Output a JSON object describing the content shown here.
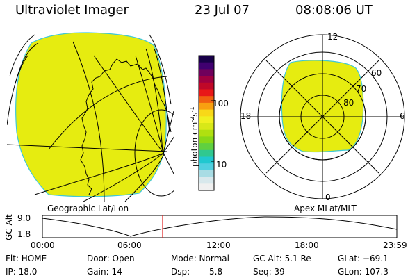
{
  "header": {
    "title": "Ultraviolet Imager",
    "date": "23 Jul 07",
    "time": "08:08:06 UT"
  },
  "left_panel": {
    "caption": "Geographic Lat/Lon",
    "fill_color": "#e6ec10"
  },
  "colorbar": {
    "axis_label": "photon cm",
    "exp1": "-2",
    "mid": "s",
    "exp2": "-1",
    "tick_100": "100",
    "tick_10": "10",
    "colors": [
      "#f0f0f0",
      "#d8e8ec",
      "#a8dce4",
      "#50d0e0",
      "#20c8d0",
      "#30c890",
      "#60d040",
      "#88d818",
      "#b0e010",
      "#d8e818",
      "#f0f020",
      "#f8d818",
      "#f8a010",
      "#f06010",
      "#e81818",
      "#c00828",
      "#a00040",
      "#70005c",
      "#400070",
      "#180048"
    ]
  },
  "right_panel": {
    "caption": "Apex MLat/MLT",
    "mlt_labels": {
      "top": "12",
      "left": "18",
      "right": "6",
      "bottom": "0"
    },
    "lat_labels": [
      "60",
      "70",
      "80"
    ],
    "fill_color": "#e6ec10"
  },
  "alt_plot": {
    "ylabel": "GC Alt",
    "yticks": [
      "9.0",
      "1.8"
    ],
    "xticks": [
      "00:00",
      "06:00",
      "12:00",
      "18:00",
      "23:59"
    ],
    "current_time_hours": 8.135,
    "marker_color": "#e02020"
  },
  "info": {
    "flt": "Flt: HOME",
    "ip": "IP: 18.0",
    "door": "Door: Open",
    "gain": "Gain: 14",
    "mode": "Mode: Normal",
    "dsp": "Dsp:",
    "dsp_val": "5.8",
    "gcalt": "GC Alt: 5.1 Re",
    "seq": "Seq: 39",
    "glat": "GLat: −69.1",
    "glon": "GLon: 107.3"
  }
}
